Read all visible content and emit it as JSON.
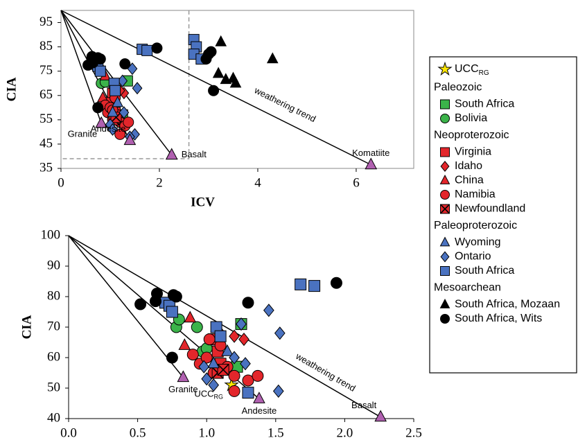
{
  "chart_data": [
    {
      "type": "scatter",
      "x_label": "ICV",
      "y_label": "CIA",
      "xlim": [
        0,
        7.17
      ],
      "ylim": [
        35,
        100
      ],
      "xticks": [
        0,
        2,
        4,
        6
      ],
      "yticks": [
        35,
        45,
        55,
        65,
        75,
        85,
        95
      ],
      "box": true,
      "trend_origin": [
        0,
        100
      ],
      "inset_box": [
        2.6,
        39
      ],
      "endmembers": [
        {
          "text": "Granite",
          "x": 0.82,
          "y": 53.5,
          "pos": "below-left"
        },
        {
          "text": "Andesite",
          "x": 1.4,
          "y": 46.5,
          "pos": "above-left"
        },
        {
          "text": "Basalt",
          "x": 2.25,
          "y": 40.5,
          "pos": "right"
        },
        {
          "text": "Komatiite",
          "x": 6.3,
          "y": 36.5,
          "pos": "above"
        }
      ],
      "trend_label": {
        "text": "weathering trend",
        "x": 4.55,
        "y": 61
      },
      "series": [
        {
          "name": "UCC",
          "subscript": "RG",
          "marker": "star",
          "color": "#ffe800",
          "x": [],
          "values": []
        },
        {
          "name": "South Africa",
          "group": "Paleozoic",
          "marker": "square",
          "color": "#3bb34a",
          "x": [
            1.35,
            1.25
          ],
          "values": [
            71,
            57
          ]
        },
        {
          "name": "Bolivia",
          "group": "Paleozoic",
          "marker": "circle",
          "color": "#3bb34a",
          "x": [
            0.82,
            0.9,
            1.0
          ],
          "values": [
            70,
            70.5,
            62
          ]
        },
        {
          "name": "Virginia",
          "group": "Neoproterozoic",
          "marker": "square",
          "color": "#e3262b",
          "x": [
            1.05,
            1.1,
            0.95
          ],
          "values": [
            66,
            58,
            62
          ]
        },
        {
          "name": "Idaho",
          "group": "Neoproterozoic",
          "marker": "diamond",
          "color": "#e3262b",
          "x": [
            1.28,
            1.2,
            1.1
          ],
          "values": [
            66,
            67,
            68
          ]
        },
        {
          "name": "China",
          "group": "Neoproterozoic",
          "marker": "triangle",
          "color": "#e3262b",
          "x": [
            0.9,
            0.85
          ],
          "values": [
            73,
            64
          ]
        },
        {
          "name": "Namibia",
          "group": "Neoproterozoic",
          "marker": "circle",
          "color": "#e3262b",
          "x": [
            0.9,
            0.95,
            1.0,
            1.05,
            1.1,
            1.15,
            1.2,
            1.3,
            1.37,
            1.2,
            1.05
          ],
          "values": [
            61,
            58,
            60,
            55,
            64,
            57,
            54,
            52.5,
            54,
            49,
            59
          ]
        },
        {
          "name": "Newfoundland",
          "group": "Neoproterozoic",
          "marker": "xsquare",
          "color": "#e3262b",
          "x": [
            1.08,
            1.12
          ],
          "values": [
            55,
            56
          ]
        },
        {
          "name": "Wyoming",
          "group": "Paleoproterozoic",
          "marker": "triangle",
          "color": "#4a72c0",
          "x": [
            1.05,
            1.15
          ],
          "values": [
            58,
            62
          ]
        },
        {
          "name": "Ontario",
          "group": "Paleoproterozoic",
          "marker": "diamond",
          "color": "#4a72c0",
          "x": [
            1.0,
            1.05,
            1.25,
            1.28,
            1.45,
            1.55,
            1.5,
            1.4
          ],
          "values": [
            53,
            51,
            71,
            58,
            76,
            68,
            49,
            48
          ]
        },
        {
          "name": "South Africa",
          "group": "Paleoproterozoic",
          "marker": "square",
          "color": "#4a72c0",
          "x": [
            0.75,
            0.8,
            1.08,
            1.1,
            1.65,
            1.75,
            2.7,
            2.75,
            2.7,
            2.85
          ],
          "values": [
            77,
            75,
            70,
            67,
            84,
            83.5,
            88,
            85,
            82,
            80
          ]
        },
        {
          "name": "South Africa, Mozaan",
          "group": "Mesoarchean",
          "marker": "triangle",
          "color": "#000000",
          "x": [
            3.25,
            3.2,
            3.35,
            3.5,
            3.55,
            4.3
          ],
          "values": [
            87,
            74,
            71.5,
            72,
            70,
            80
          ]
        },
        {
          "name": "South Africa, Wits",
          "group": "Mesoarchean",
          "marker": "circle",
          "color": "#000000",
          "x": [
            0.55,
            0.63,
            0.65,
            0.75,
            0.8,
            0.75,
            1.3,
            1.95,
            2.95,
            3.0,
            3.05,
            3.1
          ],
          "values": [
            77.5,
            81,
            78.5,
            80.5,
            80,
            60,
            78,
            84.5,
            80,
            82,
            83,
            67
          ]
        }
      ]
    },
    {
      "type": "scatter",
      "x_label": "ICV",
      "y_label": "CIA",
      "xlim": [
        0,
        2.5
      ],
      "ylim": [
        40,
        100
      ],
      "xticks": [
        {
          "value": 0,
          "label": "0.0"
        },
        0.5,
        {
          "value": 1,
          "label": "1.0"
        },
        1.5,
        {
          "value": 2,
          "label": "2.0"
        },
        2.5
      ],
      "yticks": [
        40,
        50,
        60,
        70,
        80,
        90,
        100
      ],
      "box": false,
      "trend_origin": [
        0,
        100
      ],
      "endmembers": [
        {
          "text": "Granite",
          "x": 0.83,
          "y": 53.5,
          "pos": "below"
        },
        {
          "text": "Andesite",
          "x": 1.38,
          "y": 46.5,
          "pos": "below"
        },
        {
          "text": "Basalt",
          "x": 2.26,
          "y": 40.5,
          "pos": "above-left"
        }
      ],
      "trend_label": {
        "text": "weathering trend",
        "x": 1.86,
        "y": 55
      },
      "series": [
        {
          "name": "UCC",
          "subscript": "RG",
          "marker": "star",
          "color": "#ffe800",
          "x": [
            1.18
          ],
          "values": [
            51
          ],
          "point_label": {
            "text": "UCC",
            "sub": "RG"
          }
        },
        {
          "name": "South Africa",
          "group": "Paleozoic",
          "marker": "square",
          "color": "#3bb34a",
          "x": [
            1.25,
            1.22
          ],
          "values": [
            71,
            57
          ]
        },
        {
          "name": "Bolivia",
          "group": "Paleozoic",
          "marker": "circle",
          "color": "#3bb34a",
          "x": [
            0.78,
            0.8,
            0.93,
            0.97,
            1.0
          ],
          "values": [
            70,
            72.5,
            70,
            62,
            63
          ]
        },
        {
          "name": "Virginia",
          "group": "Neoproterozoic",
          "marker": "square",
          "color": "#e3262b",
          "x": [
            1.05,
            1.1,
            1.08
          ],
          "values": [
            66,
            58,
            62
          ]
        },
        {
          "name": "Idaho",
          "group": "Neoproterozoic",
          "marker": "diamond",
          "color": "#e3262b",
          "x": [
            1.2,
            1.27,
            1.1
          ],
          "values": [
            67,
            66,
            68
          ]
        },
        {
          "name": "China",
          "group": "Neoproterozoic",
          "marker": "triangle",
          "color": "#e3262b",
          "x": [
            0.88,
            0.84
          ],
          "values": [
            73,
            64
          ]
        },
        {
          "name": "Namibia",
          "group": "Neoproterozoic",
          "marker": "circle",
          "color": "#e3262b",
          "x": [
            0.9,
            0.95,
            1.0,
            1.05,
            1.1,
            1.15,
            1.2,
            1.3,
            1.37,
            1.2,
            1.02
          ],
          "values": [
            61,
            58,
            60,
            55,
            64,
            57,
            54,
            52.5,
            54,
            49,
            66
          ]
        },
        {
          "name": "Newfoundland",
          "group": "Neoproterozoic",
          "marker": "xsquare",
          "color": "#e3262b",
          "x": [
            1.08,
            1.12
          ],
          "values": [
            55,
            56
          ]
        },
        {
          "name": "Wyoming",
          "group": "Paleoproterozoic",
          "marker": "triangle",
          "color": "#4a72c0",
          "x": [
            1.05,
            1.15
          ],
          "values": [
            58,
            62
          ]
        },
        {
          "name": "Ontario",
          "group": "Paleoproterozoic",
          "marker": "diamond",
          "color": "#4a72c0",
          "x": [
            0.98,
            1.0,
            1.05,
            1.2,
            1.28,
            1.25,
            1.45,
            1.53,
            1.52
          ],
          "values": [
            57,
            53,
            51,
            60,
            58,
            71,
            75.5,
            68,
            49
          ]
        },
        {
          "name": "South Africa",
          "group": "Paleoproterozoic",
          "marker": "square",
          "color": "#4a72c0",
          "x": [
            0.7,
            0.73,
            0.75,
            1.07,
            1.1,
            1.3,
            1.68,
            1.78
          ],
          "values": [
            78,
            77,
            75,
            70,
            67,
            48.5,
            84,
            83.5
          ]
        },
        {
          "name": "South Africa, Mozaan",
          "group": "Mesoarchean",
          "marker": "triangle",
          "color": "#000000",
          "x": [],
          "values": []
        },
        {
          "name": "South Africa, Wits",
          "group": "Mesoarchean",
          "marker": "circle",
          "color": "#000000",
          "x": [
            0.52,
            0.64,
            0.63,
            0.76,
            0.78,
            0.75,
            1.3,
            1.94
          ],
          "values": [
            77.5,
            81,
            78.5,
            80.5,
            80,
            60,
            78,
            84.5
          ]
        }
      ]
    }
  ]
}
